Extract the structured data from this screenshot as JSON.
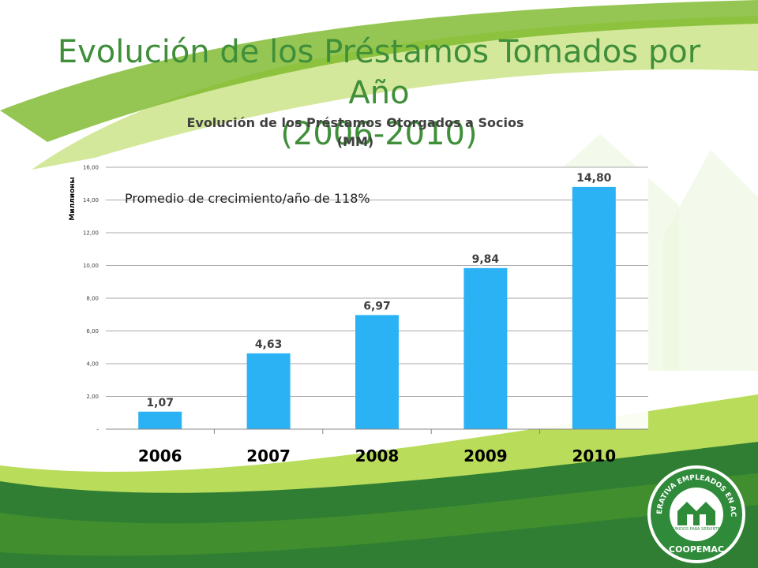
{
  "slide": {
    "title_line1": "Evolución de los Préstamos Tomados por Año",
    "title_line2": "(2006-2010)",
    "accent_green": "#3f8f3a",
    "bar_color": "#2ab2f5"
  },
  "logo": {
    "text_top": "COOPERATIVA EMPLEADOS EN ACCIÓN",
    "text_bottom": "COOPEMAC",
    "motto": "UNIDOS PARA SERVIRTE"
  },
  "chart_data": {
    "type": "bar",
    "title_line1": "Evolución de los Préstamos Otorgados a Socios",
    "title_line2": "(MM)",
    "ylabel": "Миллионы",
    "categories": [
      "2006",
      "2007",
      "2008",
      "2009",
      "2010"
    ],
    "values": [
      1.07,
      4.63,
      6.97,
      9.84,
      14.8
    ],
    "value_labels": [
      "1,07",
      "4,63",
      "6,97",
      "9,84",
      "14,80"
    ],
    "ylim": [
      0,
      16
    ],
    "yticks": [
      0,
      2,
      4,
      6,
      8,
      10,
      12,
      14,
      16
    ],
    "ytick_labels": [
      "-",
      "2,00",
      "4,00",
      "6,00",
      "8,00",
      "10,00",
      "12,00",
      "14,00",
      "16,00"
    ],
    "grid": true,
    "legend": "none",
    "annotation": "Promedio de crecimiento/año de 118%"
  }
}
